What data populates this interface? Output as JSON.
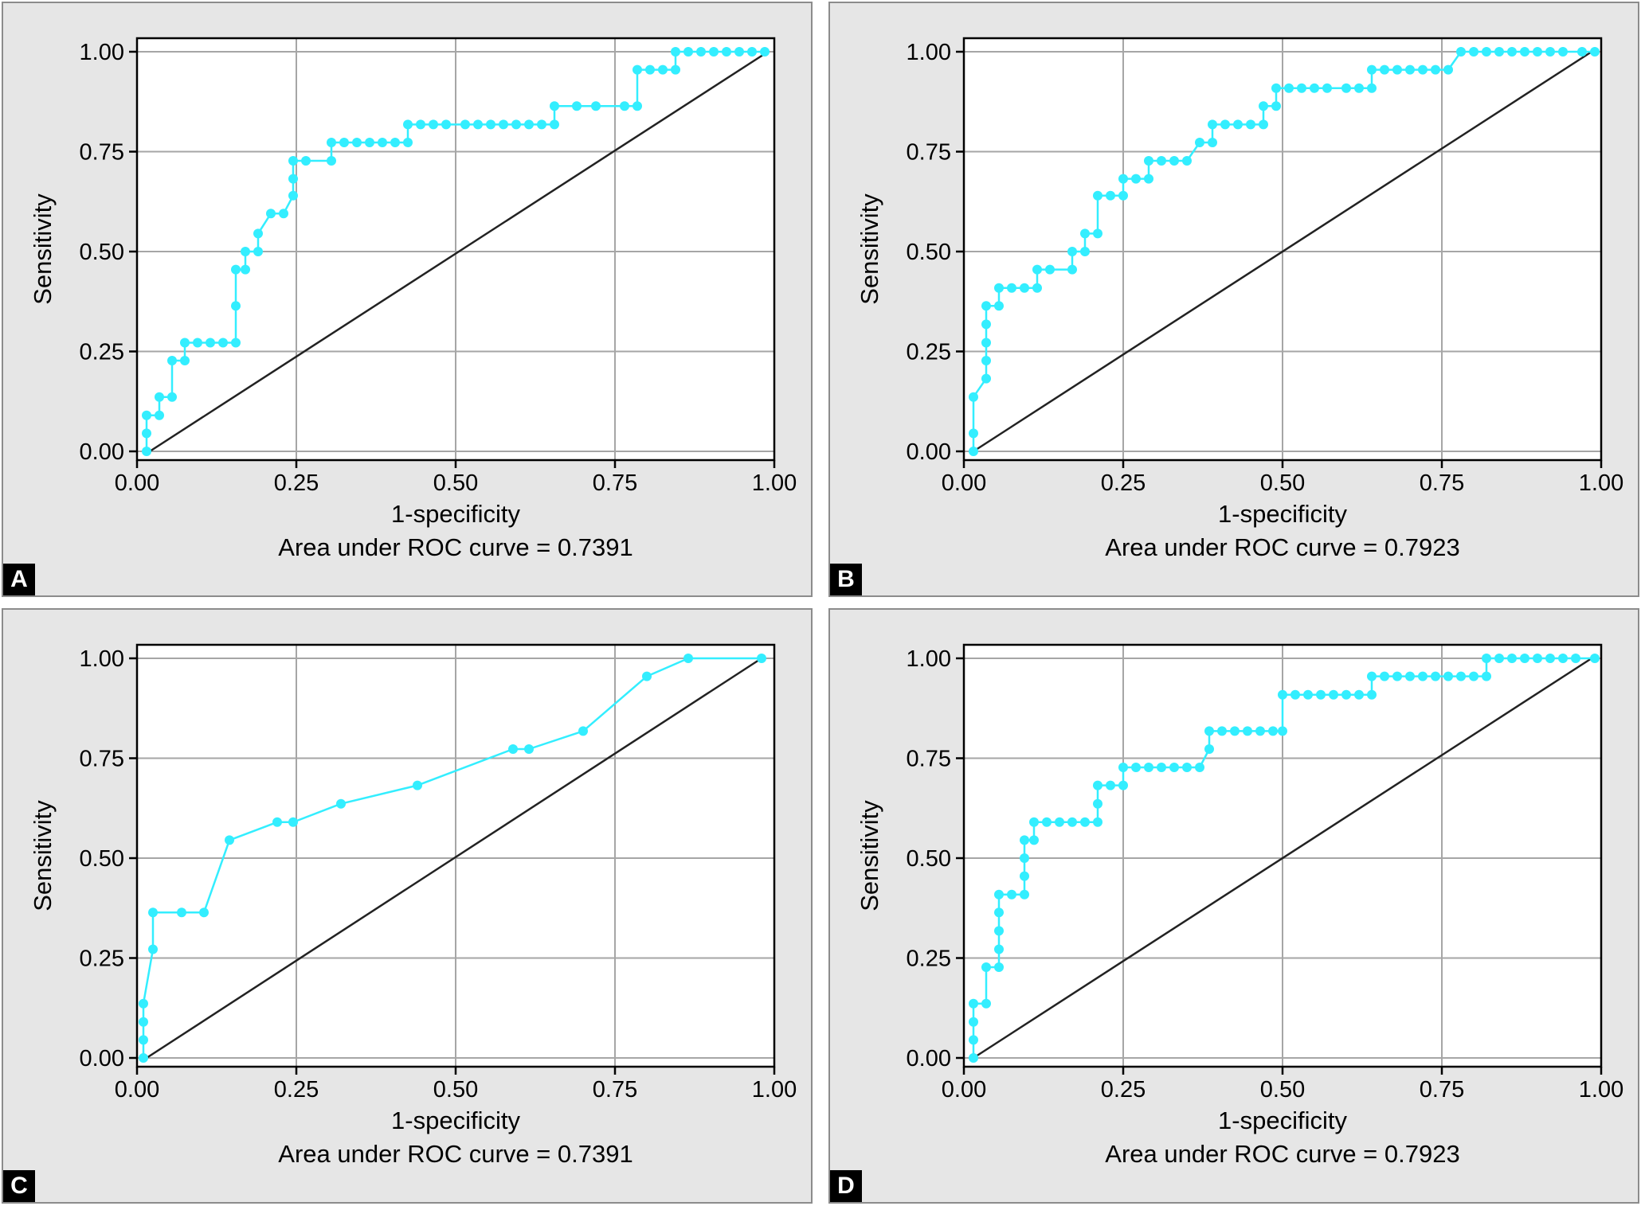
{
  "colors": {
    "roc": "#33eeff",
    "reference": "#222222",
    "grid": "#a6a6a6",
    "panel_bg": "#e6e6e6"
  },
  "chart_data": [
    {
      "panel_label": "A",
      "type": "line",
      "xlabel": "1-specificity",
      "ylabel": "Sensitivity",
      "note": "Area under ROC curve = 0.7391",
      "xlim": [
        0,
        1
      ],
      "ylim": [
        0,
        1
      ],
      "xticks": [
        "0.00",
        "0.25",
        "0.50",
        "0.75",
        "1.00"
      ],
      "yticks": [
        "0.00",
        "0.25",
        "0.50",
        "0.75",
        "1.00"
      ],
      "grid": true,
      "reference_line": [
        [
          0.02,
          0
        ],
        [
          0.99,
          1
        ]
      ],
      "series": [
        {
          "values": [
            [
              0.015,
              0
            ],
            [
              0.015,
              0.045
            ],
            [
              0.015,
              0.09
            ],
            [
              0.035,
              0.09
            ],
            [
              0.035,
              0.136
            ],
            [
              0.055,
              0.136
            ],
            [
              0.055,
              0.227
            ],
            [
              0.075,
              0.227
            ],
            [
              0.075,
              0.272
            ],
            [
              0.095,
              0.272
            ],
            [
              0.115,
              0.272
            ],
            [
              0.135,
              0.272
            ],
            [
              0.155,
              0.272
            ],
            [
              0.155,
              0.364
            ],
            [
              0.155,
              0.455
            ],
            [
              0.17,
              0.455
            ],
            [
              0.17,
              0.5
            ],
            [
              0.19,
              0.5
            ],
            [
              0.19,
              0.545
            ],
            [
              0.21,
              0.595
            ],
            [
              0.23,
              0.595
            ],
            [
              0.245,
              0.64
            ],
            [
              0.245,
              0.682
            ],
            [
              0.245,
              0.727
            ],
            [
              0.265,
              0.727
            ],
            [
              0.305,
              0.727
            ],
            [
              0.305,
              0.773
            ],
            [
              0.325,
              0.773
            ],
            [
              0.345,
              0.773
            ],
            [
              0.365,
              0.773
            ],
            [
              0.385,
              0.773
            ],
            [
              0.405,
              0.773
            ],
            [
              0.425,
              0.773
            ],
            [
              0.425,
              0.818
            ],
            [
              0.445,
              0.818
            ],
            [
              0.465,
              0.818
            ],
            [
              0.485,
              0.818
            ],
            [
              0.515,
              0.818
            ],
            [
              0.535,
              0.818
            ],
            [
              0.555,
              0.818
            ],
            [
              0.575,
              0.818
            ],
            [
              0.595,
              0.818
            ],
            [
              0.615,
              0.818
            ],
            [
              0.635,
              0.818
            ],
            [
              0.655,
              0.818
            ],
            [
              0.655,
              0.864
            ],
            [
              0.69,
              0.864
            ],
            [
              0.72,
              0.864
            ],
            [
              0.765,
              0.864
            ],
            [
              0.785,
              0.864
            ],
            [
              0.785,
              0.955
            ],
            [
              0.805,
              0.955
            ],
            [
              0.825,
              0.955
            ],
            [
              0.845,
              0.955
            ],
            [
              0.845,
              1
            ],
            [
              0.865,
              1
            ],
            [
              0.885,
              1
            ],
            [
              0.905,
              1
            ],
            [
              0.925,
              1
            ],
            [
              0.945,
              1
            ],
            [
              0.965,
              1
            ],
            [
              0.985,
              1
            ]
          ]
        }
      ]
    },
    {
      "panel_label": "B",
      "type": "line",
      "xlabel": "1-specificity",
      "ylabel": "Sensitivity",
      "note": "Area under ROC curve = 0.7923",
      "xlim": [
        0,
        1
      ],
      "ylim": [
        0,
        1
      ],
      "xticks": [
        "0.00",
        "0.25",
        "0.50",
        "0.75",
        "1.00"
      ],
      "yticks": [
        "0.00",
        "0.25",
        "0.50",
        "0.75",
        "1.00"
      ],
      "grid": true,
      "reference_line": [
        [
          0.015,
          0
        ],
        [
          0.985,
          1
        ]
      ],
      "series": [
        {
          "values": [
            [
              0.015,
              0
            ],
            [
              0.015,
              0.045
            ],
            [
              0.015,
              0.136
            ],
            [
              0.035,
              0.182
            ],
            [
              0.035,
              0.227
            ],
            [
              0.035,
              0.272
            ],
            [
              0.035,
              0.318
            ],
            [
              0.035,
              0.364
            ],
            [
              0.055,
              0.364
            ],
            [
              0.055,
              0.409
            ],
            [
              0.075,
              0.409
            ],
            [
              0.095,
              0.409
            ],
            [
              0.115,
              0.409
            ],
            [
              0.115,
              0.455
            ],
            [
              0.135,
              0.455
            ],
            [
              0.17,
              0.455
            ],
            [
              0.17,
              0.5
            ],
            [
              0.19,
              0.5
            ],
            [
              0.19,
              0.545
            ],
            [
              0.21,
              0.545
            ],
            [
              0.21,
              0.64
            ],
            [
              0.23,
              0.64
            ],
            [
              0.25,
              0.64
            ],
            [
              0.25,
              0.682
            ],
            [
              0.27,
              0.682
            ],
            [
              0.29,
              0.682
            ],
            [
              0.29,
              0.727
            ],
            [
              0.31,
              0.727
            ],
            [
              0.33,
              0.727
            ],
            [
              0.35,
              0.727
            ],
            [
              0.37,
              0.773
            ],
            [
              0.39,
              0.773
            ],
            [
              0.39,
              0.818
            ],
            [
              0.41,
              0.818
            ],
            [
              0.43,
              0.818
            ],
            [
              0.45,
              0.818
            ],
            [
              0.47,
              0.818
            ],
            [
              0.47,
              0.864
            ],
            [
              0.49,
              0.864
            ],
            [
              0.49,
              0.909
            ],
            [
              0.51,
              0.909
            ],
            [
              0.53,
              0.909
            ],
            [
              0.55,
              0.909
            ],
            [
              0.57,
              0.909
            ],
            [
              0.6,
              0.909
            ],
            [
              0.62,
              0.909
            ],
            [
              0.64,
              0.909
            ],
            [
              0.64,
              0.955
            ],
            [
              0.66,
              0.955
            ],
            [
              0.68,
              0.955
            ],
            [
              0.7,
              0.955
            ],
            [
              0.72,
              0.955
            ],
            [
              0.74,
              0.955
            ],
            [
              0.76,
              0.955
            ],
            [
              0.78,
              1
            ],
            [
              0.8,
              1
            ],
            [
              0.82,
              1
            ],
            [
              0.84,
              1
            ],
            [
              0.86,
              1
            ],
            [
              0.88,
              1
            ],
            [
              0.9,
              1
            ],
            [
              0.92,
              1
            ],
            [
              0.94,
              1
            ],
            [
              0.97,
              1
            ],
            [
              0.99,
              1
            ]
          ]
        }
      ]
    },
    {
      "panel_label": "C",
      "type": "line",
      "xlabel": "1-specificity",
      "ylabel": "Sensitivity",
      "note": "Area under ROC curve = 0.7391",
      "xlim": [
        0,
        1
      ],
      "ylim": [
        0,
        1
      ],
      "xticks": [
        "0.00",
        "0.25",
        "0.50",
        "0.75",
        "1.00"
      ],
      "yticks": [
        "0.00",
        "0.25",
        "0.50",
        "0.75",
        "1.00"
      ],
      "grid": true,
      "reference_line": [
        [
          0.015,
          0
        ],
        [
          0.98,
          1
        ]
      ],
      "series": [
        {
          "values": [
            [
              0.01,
              0
            ],
            [
              0.01,
              0.045
            ],
            [
              0.01,
              0.09
            ],
            [
              0.01,
              0.136
            ],
            [
              0.025,
              0.272
            ],
            [
              0.025,
              0.364
            ],
            [
              0.07,
              0.364
            ],
            [
              0.105,
              0.364
            ],
            [
              0.145,
              0.545
            ],
            [
              0.22,
              0.59
            ],
            [
              0.245,
              0.59
            ],
            [
              0.32,
              0.636
            ],
            [
              0.44,
              0.682
            ],
            [
              0.59,
              0.773
            ],
            [
              0.615,
              0.773
            ],
            [
              0.7,
              0.818
            ],
            [
              0.8,
              0.955
            ],
            [
              0.865,
              1
            ],
            [
              0.98,
              1
            ]
          ]
        }
      ]
    },
    {
      "panel_label": "D",
      "type": "line",
      "xlabel": "1-specificity",
      "ylabel": "Sensitivity",
      "note": "Area under ROC curve = 0.7923",
      "xlim": [
        0,
        1
      ],
      "ylim": [
        0,
        1
      ],
      "xticks": [
        "0.00",
        "0.25",
        "0.50",
        "0.75",
        "1.00"
      ],
      "yticks": [
        "0.00",
        "0.25",
        "0.50",
        "0.75",
        "1.00"
      ],
      "grid": true,
      "reference_line": [
        [
          0.015,
          0
        ],
        [
          0.985,
          1
        ]
      ],
      "series": [
        {
          "values": [
            [
              0.015,
              0
            ],
            [
              0.015,
              0.045
            ],
            [
              0.015,
              0.09
            ],
            [
              0.015,
              0.136
            ],
            [
              0.035,
              0.136
            ],
            [
              0.035,
              0.227
            ],
            [
              0.055,
              0.227
            ],
            [
              0.055,
              0.272
            ],
            [
              0.055,
              0.318
            ],
            [
              0.055,
              0.364
            ],
            [
              0.055,
              0.409
            ],
            [
              0.075,
              0.409
            ],
            [
              0.095,
              0.409
            ],
            [
              0.095,
              0.455
            ],
            [
              0.095,
              0.5
            ],
            [
              0.095,
              0.545
            ],
            [
              0.11,
              0.545
            ],
            [
              0.11,
              0.59
            ],
            [
              0.13,
              0.59
            ],
            [
              0.15,
              0.59
            ],
            [
              0.17,
              0.59
            ],
            [
              0.19,
              0.59
            ],
            [
              0.21,
              0.59
            ],
            [
              0.21,
              0.636
            ],
            [
              0.21,
              0.682
            ],
            [
              0.23,
              0.682
            ],
            [
              0.25,
              0.682
            ],
            [
              0.25,
              0.727
            ],
            [
              0.27,
              0.727
            ],
            [
              0.29,
              0.727
            ],
            [
              0.31,
              0.727
            ],
            [
              0.33,
              0.727
            ],
            [
              0.35,
              0.727
            ],
            [
              0.37,
              0.727
            ],
            [
              0.385,
              0.773
            ],
            [
              0.385,
              0.818
            ],
            [
              0.405,
              0.818
            ],
            [
              0.425,
              0.818
            ],
            [
              0.445,
              0.818
            ],
            [
              0.465,
              0.818
            ],
            [
              0.485,
              0.818
            ],
            [
              0.5,
              0.818
            ],
            [
              0.5,
              0.909
            ],
            [
              0.52,
              0.909
            ],
            [
              0.54,
              0.909
            ],
            [
              0.56,
              0.909
            ],
            [
              0.58,
              0.909
            ],
            [
              0.6,
              0.909
            ],
            [
              0.62,
              0.909
            ],
            [
              0.64,
              0.909
            ],
            [
              0.64,
              0.955
            ],
            [
              0.66,
              0.955
            ],
            [
              0.68,
              0.955
            ],
            [
              0.7,
              0.955
            ],
            [
              0.72,
              0.955
            ],
            [
              0.74,
              0.955
            ],
            [
              0.76,
              0.955
            ],
            [
              0.78,
              0.955
            ],
            [
              0.8,
              0.955
            ],
            [
              0.82,
              0.955
            ],
            [
              0.82,
              1
            ],
            [
              0.84,
              1
            ],
            [
              0.86,
              1
            ],
            [
              0.88,
              1
            ],
            [
              0.9,
              1
            ],
            [
              0.92,
              1
            ],
            [
              0.94,
              1
            ],
            [
              0.96,
              1
            ],
            [
              0.99,
              1
            ]
          ]
        }
      ]
    }
  ]
}
